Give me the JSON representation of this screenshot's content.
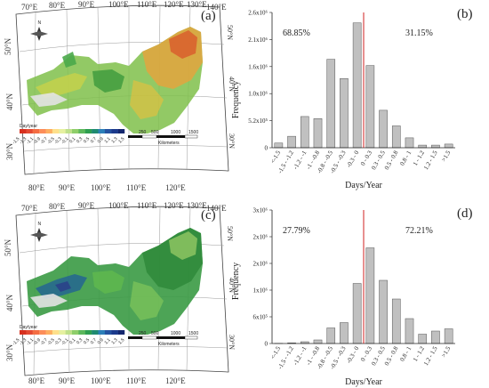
{
  "maps": [
    {
      "panel_label": "(a)",
      "top_lon": [
        "70°E",
        "80°E",
        "90°E",
        "100°E",
        "110°E",
        "120°E",
        "130°E",
        "140°E"
      ],
      "bottom_lon": [
        "80°E",
        "90°E",
        "100°E",
        "110°E",
        "120°E"
      ],
      "left_lat": [
        "50°N",
        "40°N",
        "30°N"
      ],
      "right_lat": [
        "50°N",
        "40°N",
        "30°N"
      ],
      "legend_title": "Day/year",
      "legend_ticks": [
        "-1.5",
        "-1.3",
        "-1.1",
        "-0.9",
        "-0.7",
        "-0.5",
        "-0.3",
        "-0.1",
        "0.1",
        "0.3",
        "0.5",
        "0.7",
        "0.9",
        "1.1",
        "1.3",
        "1.5"
      ],
      "scale_numbers": [
        "250",
        "500",
        "1000",
        "1500"
      ],
      "scale_unit": "Kilometers",
      "north": "N",
      "palette": "a"
    },
    {
      "panel_label": "(c)",
      "top_lon": [
        "70°E",
        "80°E",
        "90°E",
        "100°E",
        "110°E",
        "120°E",
        "130°E",
        "140°E"
      ],
      "bottom_lon": [
        "80°E",
        "90°E",
        "100°E",
        "110°E",
        "120°E"
      ],
      "left_lat": [
        "50°N",
        "40°N",
        "30°N"
      ],
      "right_lat": [
        "50°N",
        "40°N",
        "30°N"
      ],
      "legend_title": "Day/year",
      "legend_ticks": [
        "-1.5",
        "-1.3",
        "-1.1",
        "-0.9",
        "-0.7",
        "-0.5",
        "-0.3",
        "-0.1",
        "0.1",
        "0.3",
        "0.5",
        "0.7",
        "0.9",
        "1.1",
        "1.3",
        "1.5"
      ],
      "scale_numbers": [
        "250",
        "500",
        "1000",
        "1500"
      ],
      "scale_unit": "Kilometers",
      "north": "N",
      "palette": "c"
    }
  ],
  "chart_data": [
    {
      "type": "bar",
      "panel_label": "(b)",
      "categories": [
        "<-1.5",
        "-1.5 - -1.2",
        "-1.2 - -1",
        "-1 - -0.8",
        "-0.8 - -0.5",
        "-0.5 - -0.3",
        "-0.3 - 0",
        "0 - 0.3",
        "0.3 - 0.5",
        "0.5 - 0.8",
        "0.8 - 1",
        "1 - 1.2",
        "1.2 - 1.5",
        ">1.5"
      ],
      "values": [
        90000,
        220000,
        600000,
        560000,
        1700000,
        1330000,
        2400000,
        1580000,
        720000,
        420000,
        190000,
        50000,
        50000,
        70000
      ],
      "ylim": [
        0,
        2600000
      ],
      "yticks": [
        0,
        520000,
        1040000,
        1560000,
        2080000,
        2600000
      ],
      "ytick_labels": [
        "0",
        "5.2x10⁵",
        "1.0x10⁶",
        "1.6x10⁶",
        "2.1x10⁶",
        "2.6x10⁶"
      ],
      "xlabel": "Days/Year",
      "ylabel": "Frequency",
      "left_pct": "68.85%",
      "right_pct": "31.15%",
      "divider_at": "0",
      "bar_color": "#c0c0c0",
      "divider_color": "#d02020"
    },
    {
      "type": "bar",
      "panel_label": "(d)",
      "categories": [
        "<-1.5",
        "-1.5 - -1.2",
        "-1.2 - -1",
        "-1 - -0.8",
        "-0.8 - -0.5",
        "-0.5 - -0.3",
        "-0.3 - 0",
        "0 - 0.3",
        "0.3 - 0.5",
        "0.5 - 0.8",
        "0.8 - 1",
        "1 - 1.2",
        "1.2 - 1.5",
        ">1.5"
      ],
      "values": [
        5000,
        15000,
        40000,
        80000,
        350000,
        470000,
        1350000,
        2150000,
        1420000,
        1000000,
        560000,
        210000,
        280000,
        330000
      ],
      "ylim": [
        0,
        3000000
      ],
      "yticks": [
        0,
        600000,
        1200000,
        1800000,
        2400000,
        3000000
      ],
      "ytick_labels": [
        "0",
        "6x10⁵",
        "1x10⁶",
        "2x10⁶",
        "2x10⁶",
        "3x10⁶"
      ],
      "xlabel": "Days/Year",
      "ylabel": "Frequency",
      "left_pct": "27.79%",
      "right_pct": "72.21%",
      "divider_at": "0",
      "bar_color": "#c0c0c0",
      "divider_color": "#d02020"
    }
  ]
}
